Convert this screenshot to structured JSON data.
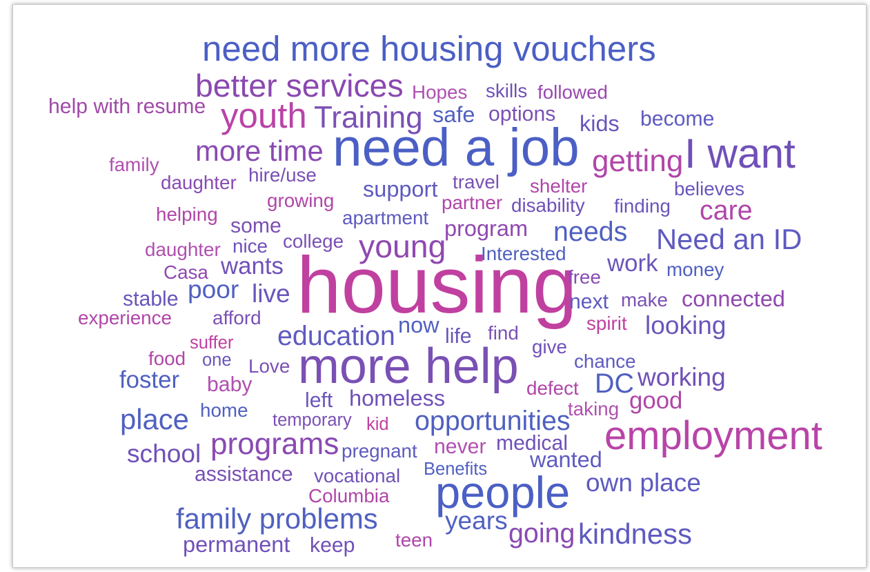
{
  "words": [
    {
      "text": "need more housing vouchers",
      "color": "#4b5fc4"
    },
    {
      "text": "better services",
      "color": "#8a48b0"
    },
    {
      "text": "Hopes",
      "color": "#b050b0"
    },
    {
      "text": "skills",
      "color": "#7050b8"
    },
    {
      "text": "followed",
      "color": "#9a48b0"
    },
    {
      "text": "help with resume",
      "color": "#a04aa8"
    },
    {
      "text": "youth",
      "color": "#b844a8"
    },
    {
      "text": "Training",
      "color": "#7a50b4"
    },
    {
      "text": "safe",
      "color": "#5060c0"
    },
    {
      "text": "options",
      "color": "#7a50b4"
    },
    {
      "text": "kids",
      "color": "#6a55bb"
    },
    {
      "text": "become",
      "color": "#5e5ac0"
    },
    {
      "text": "need a job",
      "color": "#4b5fc4"
    },
    {
      "text": "more time",
      "color": "#8a4ab2"
    },
    {
      "text": "getting",
      "color": "#b046a8"
    },
    {
      "text": "I want",
      "color": "#7050b8"
    },
    {
      "text": "family",
      "color": "#b050b0"
    },
    {
      "text": "daughter",
      "color": "#8a4ab2"
    },
    {
      "text": "hire/use",
      "color": "#7a50b4"
    },
    {
      "text": "support",
      "color": "#5e5ac0"
    },
    {
      "text": "travel",
      "color": "#7a50b4"
    },
    {
      "text": "shelter",
      "color": "#b046a8"
    },
    {
      "text": "believes",
      "color": "#6a55bb"
    },
    {
      "text": "growing",
      "color": "#b046a8"
    },
    {
      "text": "partner",
      "color": "#b046a8"
    },
    {
      "text": "disability",
      "color": "#7050b8"
    },
    {
      "text": "finding",
      "color": "#6a55bb"
    },
    {
      "text": "helping",
      "color": "#b046a8"
    },
    {
      "text": "some",
      "color": "#7a50b4"
    },
    {
      "text": "apartment",
      "color": "#5e5ac0"
    },
    {
      "text": "care",
      "color": "#b046a8"
    },
    {
      "text": "program",
      "color": "#9048b0"
    },
    {
      "text": "needs",
      "color": "#5060c0"
    },
    {
      "text": "Need an ID",
      "color": "#5e5ac0"
    },
    {
      "text": "daughter",
      "color": "#b050b0"
    },
    {
      "text": "nice",
      "color": "#7050b8"
    },
    {
      "text": "college",
      "color": "#7a50b4"
    },
    {
      "text": "young",
      "color": "#9048b0"
    },
    {
      "text": "Interested",
      "color": "#5060c0"
    },
    {
      "text": "housing",
      "color": "#c040a0"
    },
    {
      "text": "Casa",
      "color": "#9048b0"
    },
    {
      "text": "wants",
      "color": "#7050b8"
    },
    {
      "text": "work",
      "color": "#6a55bb"
    },
    {
      "text": "money",
      "color": "#5060c0"
    },
    {
      "text": "free",
      "color": "#8a4ab2"
    },
    {
      "text": "poor",
      "color": "#5060c0"
    },
    {
      "text": "live",
      "color": "#6a55bb"
    },
    {
      "text": "stable",
      "color": "#6a55bb"
    },
    {
      "text": "next",
      "color": "#5e5ac0"
    },
    {
      "text": "make",
      "color": "#7a50b4"
    },
    {
      "text": "connected",
      "color": "#9048b0"
    },
    {
      "text": "experience",
      "color": "#b046a8"
    },
    {
      "text": "afford",
      "color": "#7a50b4"
    },
    {
      "text": "spirit",
      "color": "#c040a0"
    },
    {
      "text": "looking",
      "color": "#6a55bb"
    },
    {
      "text": "education",
      "color": "#5e5ac0"
    },
    {
      "text": "now",
      "color": "#5060c0"
    },
    {
      "text": "life",
      "color": "#6a55bb"
    },
    {
      "text": "find",
      "color": "#7a50b4"
    },
    {
      "text": "suffer",
      "color": "#c040a0"
    },
    {
      "text": "give",
      "color": "#7050b8"
    },
    {
      "text": "food",
      "color": "#b046a8"
    },
    {
      "text": "one",
      "color": "#6a55bb"
    },
    {
      "text": "Love",
      "color": "#7a50b4"
    },
    {
      "text": "more help",
      "color": "#7a50b4"
    },
    {
      "text": "chance",
      "color": "#5e5ac0"
    },
    {
      "text": "foster",
      "color": "#5060c0"
    },
    {
      "text": "DC",
      "color": "#5060c0"
    },
    {
      "text": "working",
      "color": "#7050b8"
    },
    {
      "text": "baby",
      "color": "#b050b0"
    },
    {
      "text": "defect",
      "color": "#b046a8"
    },
    {
      "text": "left",
      "color": "#6a55bb"
    },
    {
      "text": "homeless",
      "color": "#7050b8"
    },
    {
      "text": "good",
      "color": "#b046a8"
    },
    {
      "text": "home",
      "color": "#5060c0"
    },
    {
      "text": "taking",
      "color": "#b050b0"
    },
    {
      "text": "place",
      "color": "#5060c0"
    },
    {
      "text": "temporary",
      "color": "#7a50b4"
    },
    {
      "text": "kid",
      "color": "#c040a0"
    },
    {
      "text": "opportunities",
      "color": "#5060c0"
    },
    {
      "text": "employment",
      "color": "#b844a8"
    },
    {
      "text": "programs",
      "color": "#8a4ab2"
    },
    {
      "text": "never",
      "color": "#b050b0"
    },
    {
      "text": "medical",
      "color": "#7050b8"
    },
    {
      "text": "school",
      "color": "#7050b8"
    },
    {
      "text": "pregnant",
      "color": "#5e5ac0"
    },
    {
      "text": "wanted",
      "color": "#5e5ac0"
    },
    {
      "text": "Benefits",
      "color": "#5060c0"
    },
    {
      "text": "assistance",
      "color": "#7a50b4"
    },
    {
      "text": "vocational",
      "color": "#7050b8"
    },
    {
      "text": "people",
      "color": "#4b5fc4"
    },
    {
      "text": "own place",
      "color": "#5e5ac0"
    },
    {
      "text": "Columbia",
      "color": "#b046a8"
    },
    {
      "text": "family problems",
      "color": "#5060c0"
    },
    {
      "text": "years",
      "color": "#5060c0"
    },
    {
      "text": "going",
      "color": "#8a4ab2"
    },
    {
      "text": "kindness",
      "color": "#5e5ac0"
    },
    {
      "text": "teen",
      "color": "#b046a8"
    },
    {
      "text": "permanent",
      "color": "#7050b8"
    },
    {
      "text": "keep",
      "color": "#7050b8"
    }
  ]
}
